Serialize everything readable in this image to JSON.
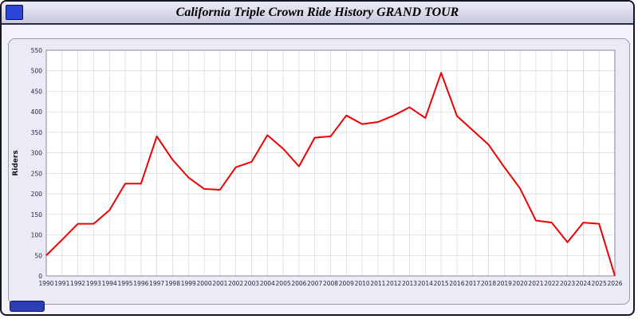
{
  "window": {
    "title": "California Triple Crown Ride History GRAND TOUR"
  },
  "colors": {
    "series_red": "#ee0000",
    "accent_blue": "#2b46d8",
    "panel_bg": "#ebebf5",
    "grid": "#d6d6d6"
  },
  "chart_data": {
    "type": "line",
    "title": "California Triple Crown Ride History GRAND TOUR",
    "xlabel": "",
    "ylabel": "Riders",
    "ylim": [
      0,
      550
    ],
    "ytick_step": 50,
    "grid": true,
    "legend": "none",
    "x": [
      "1990",
      "1991",
      "1992",
      "1993",
      "1994",
      "1995",
      "1996",
      "1997",
      "1998",
      "1999",
      "2000",
      "2001",
      "2002",
      "2003",
      "2004",
      "2005",
      "2006",
      "2007",
      "2008",
      "2009",
      "2010",
      "2011",
      "2012",
      "2013",
      "2014",
      "2015",
      "2016",
      "2017",
      "2018",
      "2019",
      "2020",
      "2021",
      "2022",
      "2023",
      "2024",
      "2025",
      "2026"
    ],
    "series": [
      {
        "name": "Riders",
        "color": "#ee0000",
        "values": [
          50,
          88,
          127,
          127,
          160,
          225,
          225,
          340,
          283,
          240,
          212,
          210,
          265,
          278,
          343,
          310,
          267,
          337,
          340,
          391,
          370,
          375,
          391,
          411,
          385,
          495,
          390,
          355,
          320,
          265,
          213,
          135,
          130,
          82,
          130,
          127,
          0
        ]
      }
    ]
  }
}
